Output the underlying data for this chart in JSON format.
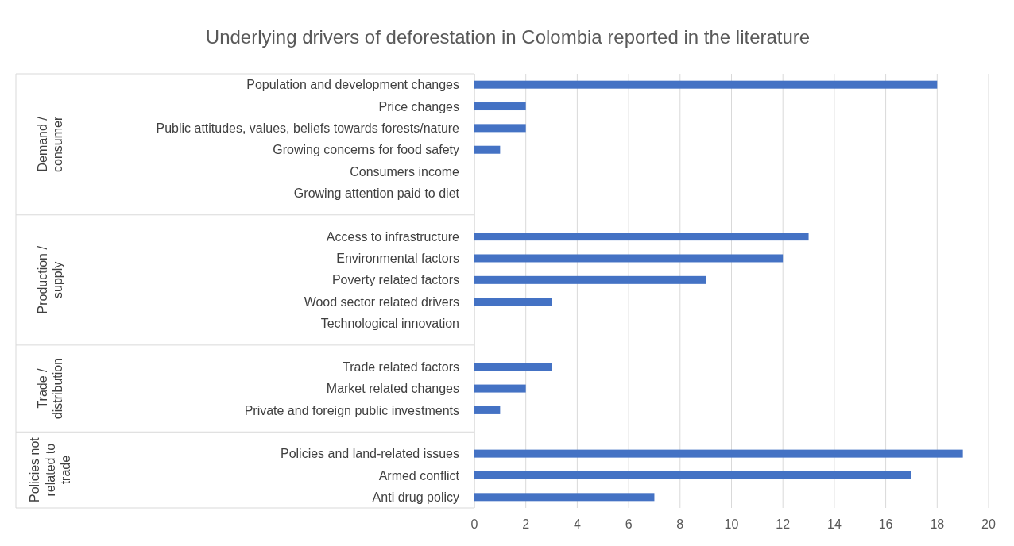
{
  "chart_data": {
    "type": "bar",
    "orientation": "horizontal",
    "title": "Underlying drivers of deforestation in Colombia reported in the literature",
    "categories": [
      "Population and development changes",
      "Price changes",
      "Public attitudes, values, beliefs towards forests/nature",
      "Growing concerns for food safety",
      "Consumers income",
      "Growing attention paid to diet",
      null,
      "Access to infrastructure",
      "Environmental factors",
      "Poverty related factors",
      "Wood sector related drivers",
      "Technological innovation",
      null,
      "Trade related factors",
      "Market related changes",
      "Private and foreign public investments",
      null,
      "Policies and land-related issues",
      "Armed conflict",
      "Anti drug policy"
    ],
    "values": [
      18,
      2,
      2,
      1,
      0,
      0,
      null,
      13,
      12,
      9,
      3,
      0,
      null,
      3,
      2,
      1,
      null,
      19,
      17,
      7
    ],
    "color": "#4472c4",
    "xlim": [
      0,
      20
    ],
    "xticks": [
      0,
      2,
      4,
      6,
      8,
      10,
      12,
      14,
      16,
      18,
      20
    ],
    "grid": "x",
    "annotations": [
      "Demand / consumer",
      "Production / supply",
      "Trade / distribution",
      "Policies not related to trade"
    ]
  }
}
